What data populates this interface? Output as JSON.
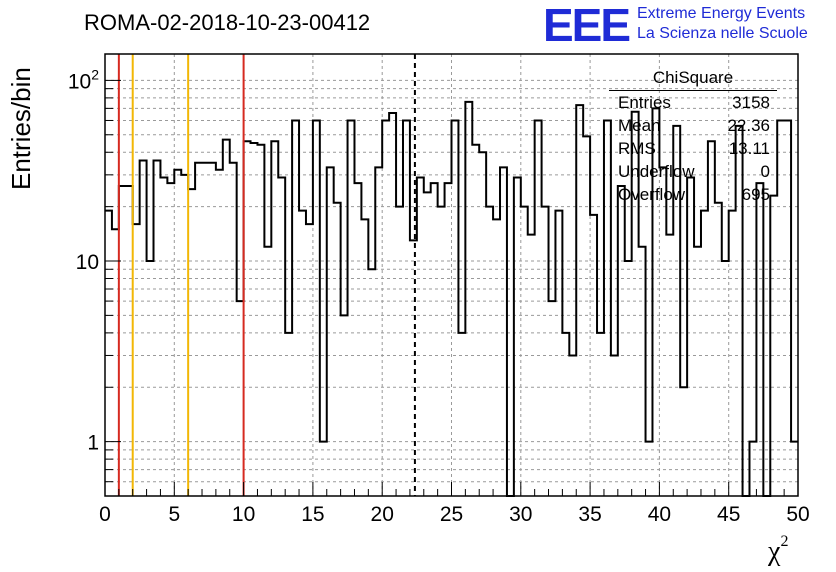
{
  "title": "ROMA-02-2018-10-23-00412",
  "logo": {
    "mark": "EEE",
    "line1": "Extreme Energy Events",
    "line2": "La Scienza nelle Scuole"
  },
  "stats": {
    "header": "ChiSquare",
    "rows": [
      {
        "label": "Entries",
        "value": "3158"
      },
      {
        "label": "Mean",
        "value": "22.36"
      },
      {
        "label": "RMS",
        "value": "13.11"
      },
      {
        "label": "Underflow",
        "value": "0"
      },
      {
        "label": "Overflow",
        "value": "695"
      }
    ]
  },
  "chart_data": {
    "type": "histogram",
    "title": "ROMA-02-2018-10-23-00412",
    "xlabel": "χ²",
    "ylabel": "Entries/bin",
    "xlim": [
      0,
      50
    ],
    "ylim": [
      0.5,
      140
    ],
    "yscale": "log",
    "grid": true,
    "bin_width": 0.5,
    "x_ticks": [
      0,
      5,
      10,
      15,
      20,
      25,
      30,
      35,
      40,
      45,
      50
    ],
    "y_ticks": [
      {
        "value": 1,
        "label": "1"
      },
      {
        "value": 10,
        "label": "10"
      },
      {
        "value": 100,
        "label": "10²"
      }
    ],
    "values": [
      19,
      15,
      26,
      26,
      16,
      36,
      10,
      36,
      29,
      27,
      32,
      30,
      25,
      35,
      35,
      35,
      32,
      47,
      35,
      6,
      46,
      45,
      44,
      12,
      46,
      29,
      4,
      60,
      19,
      16,
      60,
      1,
      33,
      21,
      5,
      60,
      27,
      17,
      9,
      33,
      60,
      66,
      20,
      60,
      13,
      29,
      24,
      27,
      20,
      27,
      60,
      4,
      76,
      44,
      40,
      20,
      17,
      33,
      0,
      29,
      20,
      14,
      60,
      20,
      6,
      19,
      4,
      3,
      73,
      49,
      18,
      4,
      60,
      3,
      26,
      10,
      67,
      12,
      1,
      70,
      33,
      14,
      56,
      2,
      29,
      12,
      19,
      46,
      21,
      10,
      19,
      56,
      0,
      1,
      27,
      0,
      23,
      60,
      60,
      1
    ],
    "vertical_lines": [
      {
        "x": 1,
        "color": "#d62a20",
        "style": "solid"
      },
      {
        "x": 2,
        "color": "#f2b705",
        "style": "solid"
      },
      {
        "x": 6,
        "color": "#f2b705",
        "style": "solid"
      },
      {
        "x": 10,
        "color": "#d62a20",
        "style": "solid"
      },
      {
        "x": 22.36,
        "color": "#000000",
        "style": "dashed"
      }
    ]
  }
}
